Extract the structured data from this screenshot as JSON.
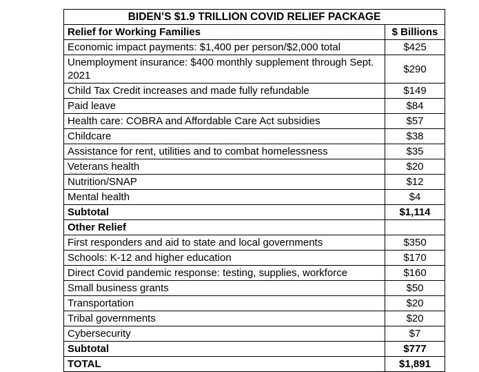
{
  "table": {
    "title": "BIDEN’S $1.9 TRILLION COVID RELIEF PACKAGE",
    "columns": {
      "label": "Relief for Working Families",
      "amount": "$ Billions"
    },
    "rows": [
      {
        "label": "Economic impact payments: $1,400 per person/$2,000 total",
        "amount": "$425"
      },
      {
        "label": "Unemployment insurance: $400 monthly supplement through Sept. 2021",
        "amount": "$290"
      },
      {
        "label": "Child Tax Credit increases and made fully refundable",
        "amount": "$149"
      },
      {
        "label": "Paid leave",
        "amount": "$84"
      },
      {
        "label": "Health care: COBRA and Affordable Care Act subsidies",
        "amount": "$57"
      },
      {
        "label": "Childcare",
        "amount": "$38"
      },
      {
        "label": "Assistance for rent, utilities and to combat homelessness",
        "amount": "$35"
      },
      {
        "label_wavy": "Veterans",
        "label_post": " health",
        "amount": "$20"
      },
      {
        "label": "Nutrition/SNAP",
        "amount": "$12"
      },
      {
        "label": "Mental health",
        "amount": "$4"
      },
      {
        "label": "Subtotal",
        "amount": "$1,114"
      },
      {
        "label": "Other Relief",
        "amount": ""
      },
      {
        "label": "First responders and aid to state and local governments",
        "amount": "$350"
      },
      {
        "label": "Schools: K-12 and higher education",
        "amount": "$170"
      },
      {
        "label_pre": "Direct ",
        "label_wavy": "Covid",
        "label_post": " pandemic response: testing, supplies, workforce",
        "amount": "$160"
      },
      {
        "label": "Small business grants",
        "amount": "$50"
      },
      {
        "label": "Transportation",
        "amount": "$20"
      },
      {
        "label": "Tribal governments",
        "amount": "$20"
      },
      {
        "label": "Cybersecurity",
        "amount": "$7"
      },
      {
        "label": "Subtotal",
        "amount": "$777"
      },
      {
        "label": "TOTAL",
        "amount": "$1,891"
      }
    ],
    "colors": {
      "text": "#000000",
      "border": "#000000",
      "background": "#ffffff",
      "spellcheck_underline": "#b5b5b5"
    }
  }
}
